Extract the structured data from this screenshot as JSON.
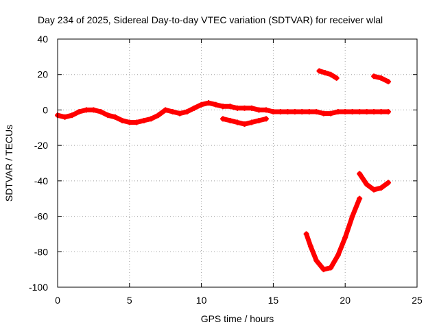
{
  "chart_data": {
    "type": "scatter",
    "title": "Day 234 of 2025, Sidereal Day-to-day VTEC variation (SDTVAR) for receiver wlal",
    "xlabel": "GPS time / hours",
    "ylabel": "SDTVAR / TECUs",
    "xlim": [
      0,
      25
    ],
    "ylim": [
      -100,
      40
    ],
    "xticks": [
      0,
      5,
      10,
      15,
      20,
      25
    ],
    "yticks": [
      -100,
      -80,
      -60,
      -40,
      -20,
      0,
      20,
      40
    ],
    "grid": true,
    "legend": "none",
    "color": "#ff0000",
    "series": [
      {
        "points": [
          [
            0,
            -3
          ],
          [
            0.5,
            -4
          ],
          [
            1,
            -3
          ],
          [
            1.5,
            -1
          ],
          [
            2,
            0
          ],
          [
            2.5,
            0
          ],
          [
            3,
            -1
          ],
          [
            3.5,
            -3
          ],
          [
            4,
            -4
          ],
          [
            4.5,
            -6
          ],
          [
            5,
            -7
          ],
          [
            5.5,
            -7
          ],
          [
            6,
            -6
          ],
          [
            6.5,
            -5
          ],
          [
            7,
            -3
          ],
          [
            7.5,
            0
          ],
          [
            8,
            -1
          ],
          [
            8.5,
            -2
          ],
          [
            9,
            -1
          ],
          [
            9.5,
            1
          ],
          [
            10,
            3
          ],
          [
            10.5,
            4
          ],
          [
            11,
            3
          ],
          [
            11.5,
            2
          ],
          [
            12,
            2
          ],
          [
            12.5,
            1
          ],
          [
            13,
            1
          ],
          [
            13.5,
            1
          ],
          [
            14,
            0
          ],
          [
            14.5,
            0
          ],
          [
            15,
            -1
          ],
          [
            15.5,
            -1
          ],
          [
            16,
            -1
          ],
          [
            16.5,
            -1
          ],
          [
            17,
            -1
          ],
          [
            17.5,
            -1
          ],
          [
            18,
            -1
          ],
          [
            18.5,
            -2
          ],
          [
            19,
            -2
          ],
          [
            19.5,
            -1
          ],
          [
            20,
            -1
          ],
          [
            20.5,
            -1
          ],
          [
            21,
            -1
          ],
          [
            21.5,
            -1
          ],
          [
            22,
            -1
          ],
          [
            22.5,
            -1
          ],
          [
            23,
            -1
          ]
        ]
      },
      {
        "points": [
          [
            11.5,
            -5
          ],
          [
            12,
            -6
          ],
          [
            12.5,
            -7
          ],
          [
            13,
            -8
          ],
          [
            13.5,
            -7
          ],
          [
            14,
            -6
          ],
          [
            14.5,
            -5
          ]
        ]
      },
      {
        "points": [
          [
            18.2,
            22
          ],
          [
            18.6,
            21
          ],
          [
            19,
            20
          ],
          [
            19.4,
            18
          ]
        ]
      },
      {
        "points": [
          [
            22,
            19
          ],
          [
            22.5,
            18
          ],
          [
            23,
            16
          ]
        ]
      },
      {
        "points": [
          [
            21,
            -36
          ],
          [
            21.5,
            -42
          ],
          [
            22,
            -45
          ],
          [
            22.5,
            -44
          ],
          [
            23,
            -41
          ]
        ]
      },
      {
        "points": [
          [
            17.3,
            -70
          ],
          [
            17.6,
            -77
          ],
          [
            18,
            -85
          ],
          [
            18.5,
            -90
          ],
          [
            19,
            -89
          ],
          [
            19.5,
            -82
          ],
          [
            20,
            -72
          ],
          [
            20.5,
            -60
          ],
          [
            21,
            -50
          ]
        ]
      }
    ]
  }
}
